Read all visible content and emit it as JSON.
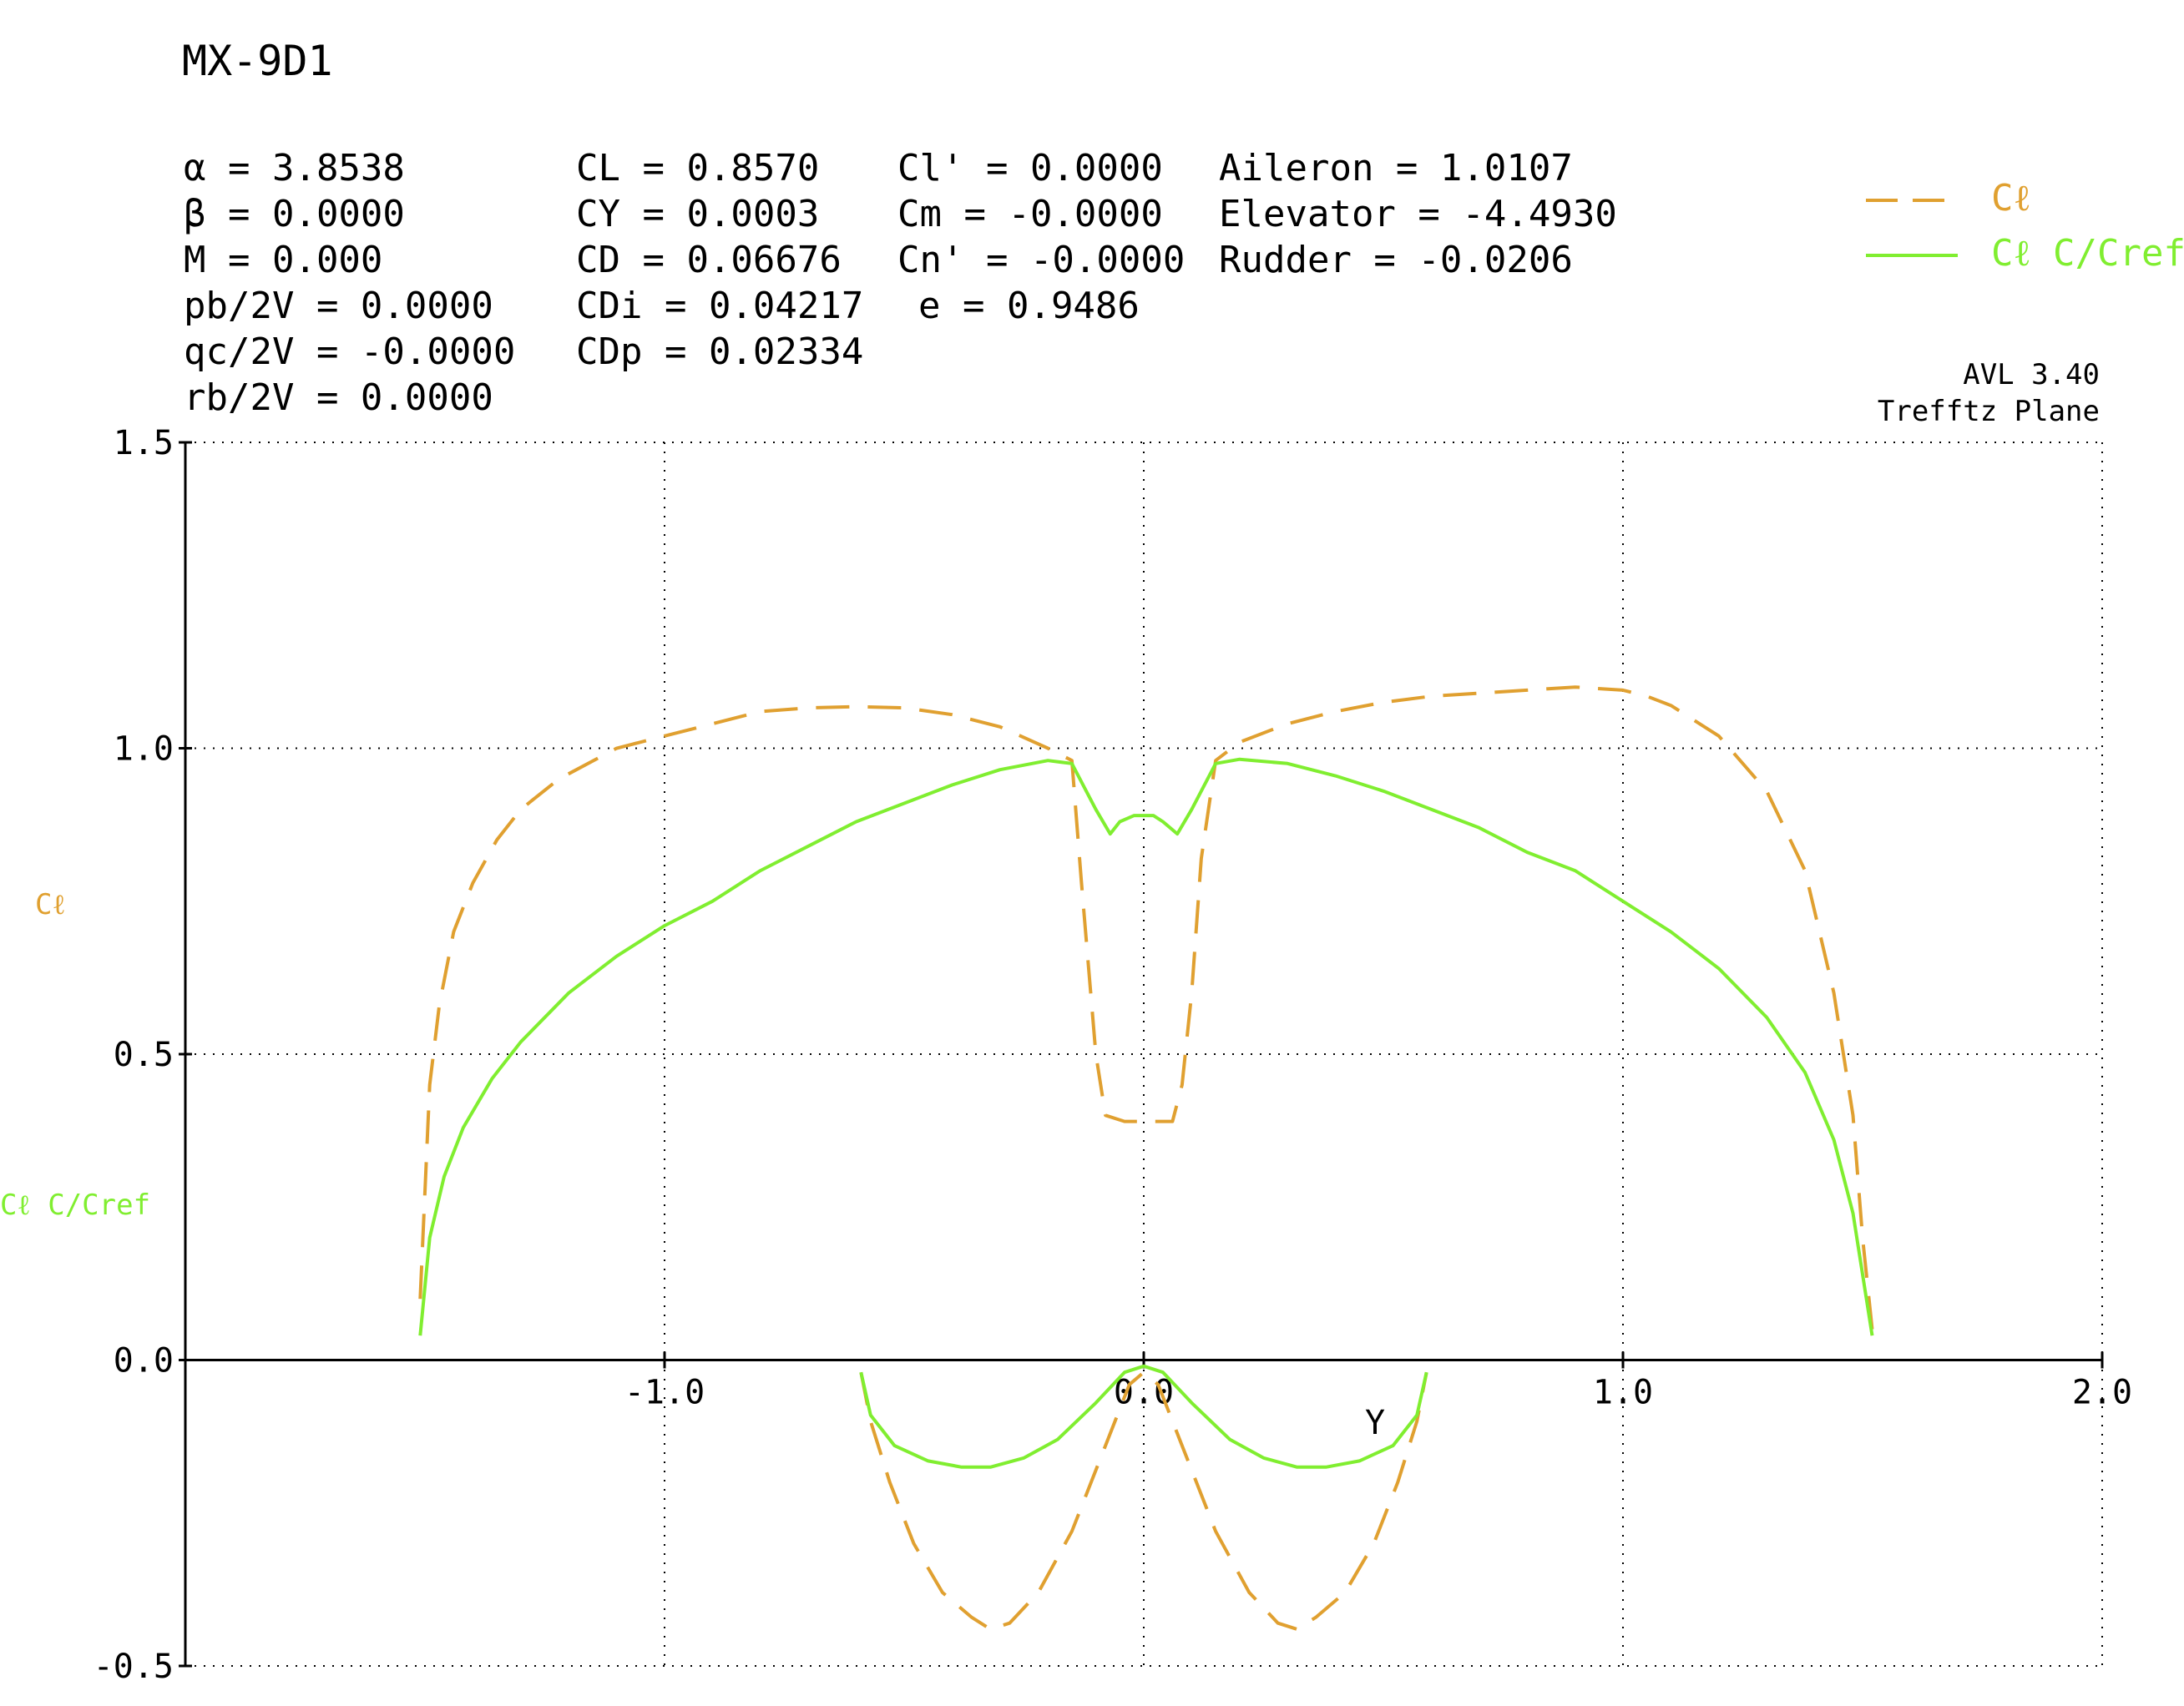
{
  "title": "MX-9D1",
  "params": {
    "col1": [
      "α = 3.8538",
      "β = 0.0000",
      "M = 0.000",
      "pb/2V = 0.0000",
      "qc/2V = -0.0000",
      "rb/2V = 0.0000"
    ],
    "col2": [
      "CL = 0.8570",
      "CY = 0.0003",
      "CD = 0.06676",
      "CDi = 0.04217",
      "CDp = 0.02334"
    ],
    "col3": [
      "Cl' = 0.0000",
      "Cm = -0.0000",
      "Cn' = -0.0000",
      "e = 0.9486"
    ],
    "col4": [
      "Aileron = 1.0107",
      "Elevator = -4.4930",
      "Rudder = -0.0206"
    ]
  },
  "version": "AVL 3.40",
  "plane_label": "Trefftz Plane",
  "colors": {
    "cl": "#e0a030",
    "clc": "#80ee30",
    "axis": "#000000"
  },
  "chart_data": {
    "type": "line",
    "title": "MX-9D1",
    "xlabel": "Y",
    "ylabel_cl": "Cℓ",
    "ylabel_clc": "Cℓ C/Cref",
    "xlim": [
      -2.0,
      2.0
    ],
    "ylim": [
      -0.5,
      1.5
    ],
    "x_ticks": [
      "-1.0",
      "0.0",
      "1.0",
      "2.0"
    ],
    "y_ticks": [
      "1.5",
      "1.0",
      "0.5",
      "0.0",
      "-0.5"
    ],
    "grid": true,
    "legend": "top-right",
    "series": [
      {
        "name": "Cℓ",
        "style": "dashed",
        "segments": [
          [
            [
              -1.51,
              0.1
            ],
            [
              -1.49,
              0.45
            ],
            [
              -1.47,
              0.58
            ],
            [
              -1.44,
              0.7
            ],
            [
              -1.4,
              0.78
            ],
            [
              -1.35,
              0.85
            ],
            [
              -1.3,
              0.9
            ],
            [
              -1.22,
              0.95
            ],
            [
              -1.1,
              1.0
            ],
            [
              -1.0,
              1.02
            ],
            [
              -0.9,
              1.04
            ],
            [
              -0.8,
              1.06
            ],
            [
              -0.7,
              1.066
            ],
            [
              -0.6,
              1.068
            ],
            [
              -0.5,
              1.066
            ],
            [
              -0.4,
              1.055
            ],
            [
              -0.3,
              1.035
            ],
            [
              -0.2,
              1.0
            ],
            [
              -0.15,
              0.98
            ],
            [
              -0.13,
              0.78
            ],
            [
              -0.1,
              0.5
            ],
            [
              -0.08,
              0.4
            ],
            [
              -0.04,
              0.39
            ],
            [
              0.04,
              0.39
            ],
            [
              0.06,
              0.39
            ],
            [
              0.08,
              0.45
            ],
            [
              0.1,
              0.6
            ],
            [
              0.12,
              0.82
            ],
            [
              0.15,
              0.98
            ],
            [
              0.2,
              1.01
            ],
            [
              0.3,
              1.04
            ],
            [
              0.4,
              1.06
            ],
            [
              0.5,
              1.075
            ],
            [
              0.6,
              1.085
            ],
            [
              0.7,
              1.09
            ],
            [
              0.8,
              1.095
            ],
            [
              0.9,
              1.1
            ],
            [
              1.0,
              1.095
            ],
            [
              1.05,
              1.085
            ],
            [
              1.1,
              1.07
            ],
            [
              1.2,
              1.02
            ],
            [
              1.3,
              0.93
            ],
            [
              1.38,
              0.8
            ],
            [
              1.44,
              0.6
            ],
            [
              1.48,
              0.4
            ],
            [
              1.5,
              0.2
            ],
            [
              1.52,
              0.05
            ]
          ],
          [
            [
              -0.59,
              -0.02
            ],
            [
              -0.57,
              -0.1
            ],
            [
              -0.53,
              -0.2
            ],
            [
              -0.48,
              -0.3
            ],
            [
              -0.42,
              -0.38
            ],
            [
              -0.36,
              -0.42
            ],
            [
              -0.32,
              -0.44
            ],
            [
              -0.28,
              -0.43
            ],
            [
              -0.22,
              -0.38
            ],
            [
              -0.15,
              -0.28
            ],
            [
              -0.08,
              -0.14
            ],
            [
              -0.03,
              -0.04
            ],
            [
              0.0,
              -0.02
            ],
            [
              0.03,
              -0.04
            ],
            [
              0.08,
              -0.14
            ],
            [
              0.15,
              -0.28
            ],
            [
              0.22,
              -0.38
            ],
            [
              0.28,
              -0.43
            ],
            [
              0.32,
              -0.44
            ],
            [
              0.36,
              -0.42
            ],
            [
              0.42,
              -0.38
            ],
            [
              0.48,
              -0.3
            ],
            [
              0.53,
              -0.2
            ],
            [
              0.57,
              -0.1
            ],
            [
              0.59,
              -0.02
            ]
          ]
        ]
      },
      {
        "name": "Cℓ C/Cref",
        "style": "solid",
        "segments": [
          [
            [
              -1.51,
              0.04
            ],
            [
              -1.49,
              0.2
            ],
            [
              -1.46,
              0.3
            ],
            [
              -1.42,
              0.38
            ],
            [
              -1.36,
              0.46
            ],
            [
              -1.3,
              0.52
            ],
            [
              -1.2,
              0.6
            ],
            [
              -1.1,
              0.66
            ],
            [
              -1.0,
              0.71
            ],
            [
              -0.9,
              0.75
            ],
            [
              -0.8,
              0.8
            ],
            [
              -0.7,
              0.84
            ],
            [
              -0.6,
              0.88
            ],
            [
              -0.5,
              0.91
            ],
            [
              -0.4,
              0.94
            ],
            [
              -0.3,
              0.965
            ],
            [
              -0.2,
              0.98
            ],
            [
              -0.15,
              0.975
            ],
            [
              -0.12,
              0.93
            ],
            [
              -0.1,
              0.9
            ],
            [
              -0.07,
              0.86
            ],
            [
              -0.05,
              0.88
            ],
            [
              -0.02,
              0.89
            ],
            [
              0.02,
              0.89
            ],
            [
              0.04,
              0.88
            ],
            [
              0.07,
              0.86
            ],
            [
              0.1,
              0.9
            ],
            [
              0.15,
              0.975
            ],
            [
              0.2,
              0.982
            ],
            [
              0.3,
              0.975
            ],
            [
              0.4,
              0.955
            ],
            [
              0.5,
              0.93
            ],
            [
              0.6,
              0.9
            ],
            [
              0.7,
              0.87
            ],
            [
              0.8,
              0.83
            ],
            [
              0.9,
              0.8
            ],
            [
              1.0,
              0.75
            ],
            [
              1.1,
              0.7
            ],
            [
              1.2,
              0.64
            ],
            [
              1.3,
              0.56
            ],
            [
              1.38,
              0.47
            ],
            [
              1.44,
              0.36
            ],
            [
              1.48,
              0.24
            ],
            [
              1.5,
              0.14
            ],
            [
              1.52,
              0.04
            ]
          ],
          [
            [
              -0.59,
              -0.02
            ],
            [
              -0.57,
              -0.09
            ],
            [
              -0.52,
              -0.14
            ],
            [
              -0.45,
              -0.165
            ],
            [
              -0.38,
              -0.175
            ],
            [
              -0.32,
              -0.175
            ],
            [
              -0.25,
              -0.16
            ],
            [
              -0.18,
              -0.13
            ],
            [
              -0.1,
              -0.07
            ],
            [
              -0.04,
              -0.02
            ],
            [
              0.0,
              -0.01
            ],
            [
              0.04,
              -0.02
            ],
            [
              0.1,
              -0.07
            ],
            [
              0.18,
              -0.13
            ],
            [
              0.25,
              -0.16
            ],
            [
              0.32,
              -0.175
            ],
            [
              0.38,
              -0.175
            ],
            [
              0.45,
              -0.165
            ],
            [
              0.52,
              -0.14
            ],
            [
              0.57,
              -0.09
            ],
            [
              0.59,
              -0.02
            ]
          ]
        ]
      }
    ]
  }
}
